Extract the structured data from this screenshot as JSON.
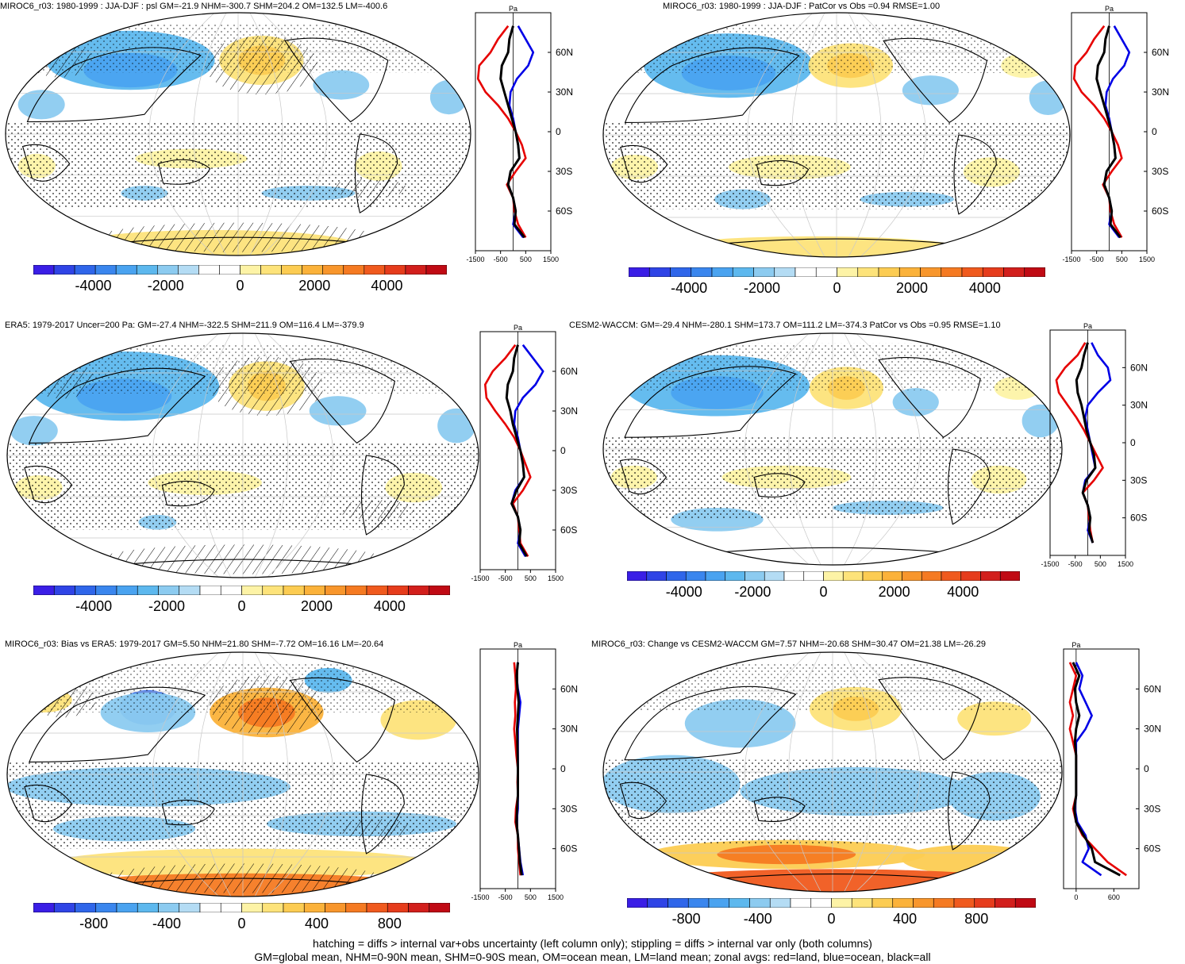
{
  "panels": [
    {
      "title": "MIROC6_r03: 1980-1999 : JJA-DJF : psl GM=-21.9 NHM=-300.7 SHM=204.2 OM=132.5 LM=-400.6",
      "colorbar_labels": [
        "-4000",
        "-2000",
        "0",
        "2000",
        "4000"
      ],
      "zonal_units": "Pa",
      "zonal_lat_labels": [
        "60N",
        "30N",
        "0",
        "30S",
        "60S"
      ],
      "zonal_x_labels": [
        "-1500",
        "-500",
        "500",
        "1500"
      ]
    },
    {
      "title": "MIROC6_r03: 1980-1999 : JJA-DJF : PatCor vs Obs =0.94 RMSE=1.00",
      "colorbar_labels": [
        "-4000",
        "-2000",
        "0",
        "2000",
        "4000"
      ],
      "zonal_units": "Pa",
      "zonal_lat_labels": [
        "60N",
        "30N",
        "0",
        "30S",
        "60S"
      ],
      "zonal_x_labels": [
        "-1500",
        "-500",
        "500",
        "1500"
      ]
    },
    {
      "title": "ERA5: 1979-2017 Uncer=200 Pa: GM=-27.4 NHM=-322.5 SHM=211.9 OM=116.4 LM=-379.9",
      "colorbar_labels": [
        "-4000",
        "-2000",
        "0",
        "2000",
        "4000"
      ],
      "zonal_units": "Pa",
      "zonal_lat_labels": [
        "60N",
        "30N",
        "0",
        "30S",
        "60S"
      ],
      "zonal_x_labels": [
        "-1500",
        "-500",
        "500",
        "1500"
      ]
    },
    {
      "title": "CESM2-WACCM: GM=-29.4 NHM=-280.1 SHM=173.7 OM=111.2 LM=-374.3 PatCor vs Obs =0.95 RMSE=1.10",
      "colorbar_labels": [
        "-4000",
        "-2000",
        "0",
        "2000",
        "4000"
      ],
      "zonal_units": "Pa",
      "zonal_lat_labels": [
        "60N",
        "30N",
        "0",
        "30S",
        "60S"
      ],
      "zonal_x_labels": [
        "-1500",
        "-500",
        "500",
        "1500"
      ]
    },
    {
      "title": "MIROC6_r03: Bias vs ERA5: 1979-2017 GM=5.50 NHM=21.80 SHM=-7.72 OM=16.16 LM=-20.64",
      "colorbar_labels": [
        "-800",
        "-400",
        "0",
        "400",
        "800"
      ],
      "zonal_units": "Pa",
      "zonal_lat_labels": [
        "60N",
        "30N",
        "0",
        "30S",
        "60S"
      ],
      "zonal_x_labels": [
        "-1500",
        "-500",
        "500",
        "1500"
      ]
    },
    {
      "title": "MIROC6_r03: Change vs CESM2-WACCM GM=7.57 NHM=-20.68 SHM=30.47 OM=21.38 LM=-26.29",
      "colorbar_labels": [
        "-800",
        "-400",
        "0",
        "400",
        "800"
      ],
      "zonal_units": "Pa",
      "zonal_lat_labels": [
        "60N",
        "30N",
        "0",
        "30S",
        "60S"
      ],
      "zonal_x_labels": [
        "0",
        "600"
      ]
    }
  ],
  "footer": {
    "line1": "hatching = diffs > internal var+obs uncertainty (left column only); stippling = diffs > internal var only (both columns)",
    "line2": "GM=global mean, NHM=0-90N mean, SHM=0-90S mean, OM=ocean mean, LM=land mean; zonal avgs: red=land, blue=ocean, black=all"
  },
  "colors": {
    "scale": [
      "#3a1ee6",
      "#2f44e6",
      "#2f66ea",
      "#3a86ee",
      "#4aa3f0",
      "#5db8ee",
      "#8ccbf0",
      "#b4dcf4",
      "#ffffff",
      "#ffffff",
      "#fdf3a6",
      "#fde37a",
      "#fccc52",
      "#fbb23a",
      "#f8962c",
      "#f57a22",
      "#f05a1e",
      "#e63c1c",
      "#d21f1c",
      "#c00a14"
    ],
    "land_line": "#e60000",
    "ocean_line": "#0000e6",
    "all_line": "#000000"
  },
  "chart_data": [
    {
      "type": "heatmap",
      "title": "MIROC6_r03: 1980-1999 : JJA-DJF : psl GM=-21.9 NHM=-300.7 SHM=204.2 OM=132.5 LM=-400.6",
      "colorbar_range": [
        -5000,
        5000
      ],
      "zonal_mean": {
        "lat": [
          80,
          70,
          60,
          50,
          40,
          30,
          20,
          10,
          0,
          -10,
          -20,
          -30,
          -40,
          -50,
          -60,
          -70,
          -80
        ],
        "x_range": [
          -1500,
          1500
        ],
        "land": [
          -200,
          -600,
          -900,
          -1350,
          -1400,
          -1100,
          -600,
          -200,
          100,
          350,
          500,
          100,
          -250,
          0,
          50,
          200,
          500
        ],
        "ocean": [
          200,
          500,
          800,
          600,
          150,
          -100,
          -150,
          0,
          100,
          200,
          250,
          -100,
          -200,
          0,
          100,
          0,
          400
        ],
        "all": [
          0,
          -150,
          -200,
          -450,
          -500,
          -350,
          -200,
          -50,
          100,
          200,
          250,
          -100,
          -200,
          0,
          100,
          50,
          450
        ]
      }
    },
    {
      "type": "heatmap",
      "title": "MIROC6_r03: 1980-1999 : JJA-DJF : PatCor vs Obs =0.94 RMSE=1.00",
      "colorbar_range": [
        -5000,
        5000
      ],
      "zonal_mean": {
        "lat": [
          80,
          70,
          60,
          50,
          40,
          30,
          20,
          10,
          0,
          -10,
          -20,
          -30,
          -40,
          -50,
          -60,
          -70,
          -80
        ],
        "x_range": [
          -1500,
          1500
        ],
        "land": [
          -200,
          -600,
          -900,
          -1350,
          -1400,
          -1100,
          -600,
          -200,
          100,
          350,
          500,
          100,
          -250,
          0,
          50,
          200,
          500
        ],
        "ocean": [
          200,
          500,
          800,
          600,
          150,
          -100,
          -150,
          0,
          100,
          200,
          250,
          -100,
          -200,
          0,
          100,
          0,
          400
        ],
        "all": [
          0,
          -150,
          -200,
          -450,
          -500,
          -350,
          -200,
          -50,
          100,
          200,
          250,
          -100,
          -200,
          0,
          100,
          50,
          450
        ]
      }
    },
    {
      "type": "heatmap",
      "title": "ERA5: 1979-2017 Uncer=200 Pa: GM=-27.4 NHM=-322.5 SHM=211.9 OM=116.4 LM=-379.9",
      "colorbar_range": [
        -5000,
        5000
      ],
      "zonal_mean": {
        "lat": [
          80,
          70,
          60,
          50,
          40,
          30,
          20,
          10,
          0,
          -10,
          -20,
          -30,
          -40,
          -50,
          -60,
          -70,
          -80
        ],
        "x_range": [
          -1500,
          1500
        ],
        "land": [
          -100,
          -500,
          -1000,
          -1300,
          -1250,
          -900,
          -500,
          -150,
          100,
          300,
          500,
          200,
          -200,
          0,
          50,
          100,
          400
        ],
        "ocean": [
          200,
          600,
          1000,
          700,
          200,
          -100,
          -150,
          0,
          100,
          200,
          250,
          -100,
          -250,
          0,
          100,
          0,
          300
        ],
        "all": [
          0,
          -150,
          -200,
          -400,
          -450,
          -300,
          -200,
          -50,
          100,
          200,
          250,
          -50,
          -250,
          0,
          100,
          50,
          350
        ]
      }
    },
    {
      "type": "heatmap",
      "title": "CESM2-WACCM: GM=-29.4 NHM=-280.1 SHM=173.7 OM=111.2 LM=-374.3 PatCor vs Obs =0.95 RMSE=1.10",
      "colorbar_range": [
        -5000,
        5000
      ],
      "zonal_mean": {
        "lat": [
          80,
          70,
          60,
          50,
          40,
          30,
          20,
          10,
          0,
          -10,
          -20,
          -30,
          -40,
          -50,
          -60,
          -70,
          -80
        ],
        "x_range": [
          -1500,
          1500
        ],
        "land": [
          -100,
          -400,
          -900,
          -1250,
          -1150,
          -800,
          -450,
          -150,
          100,
          350,
          600,
          250,
          -200,
          0,
          50,
          100,
          200
        ],
        "ocean": [
          150,
          400,
          800,
          900,
          400,
          0,
          -100,
          0,
          100,
          200,
          300,
          -100,
          -200,
          0,
          100,
          0,
          200
        ],
        "all": [
          0,
          -150,
          -250,
          -450,
          -400,
          -250,
          -150,
          -50,
          100,
          250,
          300,
          -50,
          -200,
          0,
          100,
          50,
          200
        ]
      }
    },
    {
      "type": "heatmap",
      "title": "MIROC6_r03: Bias vs ERA5: 1979-2017 GM=5.50 NHM=21.80 SHM=-7.72 OM=16.16 LM=-20.64",
      "colorbar_range": [
        -1000,
        1000
      ],
      "zonal_mean": {
        "lat": [
          80,
          70,
          60,
          50,
          40,
          30,
          20,
          10,
          0,
          -10,
          -20,
          -30,
          -40,
          -50,
          -60,
          -70,
          -80
        ],
        "x_range": [
          -1500,
          1500
        ],
        "land": [
          -150,
          -100,
          -80,
          -120,
          -100,
          -150,
          -100,
          -60,
          0,
          -20,
          0,
          -80,
          -100,
          0,
          0,
          50,
          100
        ],
        "ocean": [
          0,
          -50,
          0,
          100,
          50,
          0,
          0,
          0,
          0,
          0,
          0,
          0,
          -50,
          0,
          50,
          100,
          200
        ],
        "all": [
          0,
          -50,
          -20,
          30,
          0,
          -30,
          -20,
          -10,
          0,
          0,
          0,
          -30,
          -60,
          0,
          40,
          80,
          150
        ]
      }
    },
    {
      "type": "heatmap",
      "title": "MIROC6_r03: Change vs CESM2-WACCM GM=7.57 NHM=-20.68 SHM=30.47 OM=21.38 LM=-26.29",
      "colorbar_range": [
        -1000,
        1000
      ],
      "zonal_mean": {
        "lat": [
          80,
          70,
          60,
          50,
          40,
          30,
          20,
          10,
          0,
          -10,
          -20,
          -30,
          -40,
          -50,
          -60,
          -70,
          -80
        ],
        "x_range": [
          -200,
          1000
        ],
        "land": [
          -100,
          0,
          -50,
          -100,
          -50,
          -100,
          -50,
          0,
          0,
          0,
          0,
          -50,
          0,
          100,
          300,
          500,
          800
        ],
        "ocean": [
          0,
          100,
          50,
          150,
          250,
          150,
          0,
          0,
          0,
          0,
          0,
          -20,
          20,
          150,
          200,
          100,
          400
        ],
        "all": [
          -50,
          50,
          -20,
          0,
          50,
          0,
          -20,
          0,
          0,
          0,
          0,
          -30,
          0,
          120,
          250,
          300,
          700
        ]
      }
    }
  ]
}
